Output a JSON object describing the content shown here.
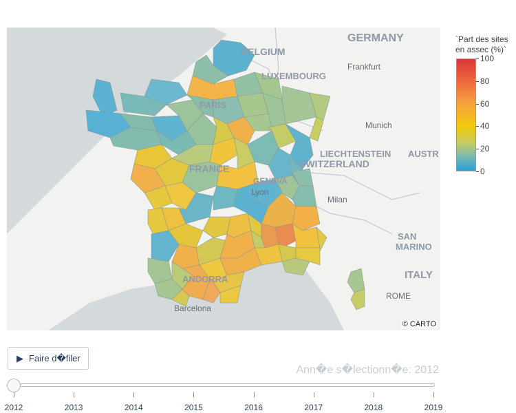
{
  "map": {
    "labels": {
      "germany": "GERMANY",
      "belgium": "BELGIUM",
      "luxembourg": "LUXEMBOURG",
      "frankfurt": "Frankfurt",
      "paris": "PARIS",
      "munich": "Munich",
      "liechtenstein": "LIECHTENSTEIN",
      "austria": "AUSTR",
      "switzerland": "SWITZERLAND",
      "france": "FRANCE",
      "geneva": "GENEVA",
      "lyon": "Lyon",
      "milan": "Milan",
      "san_marino_1": "SAN",
      "san_marino_2": "MARINO",
      "italy": "ITALY",
      "rome": "ROME",
      "andorra": "ANDORRA",
      "barcelona": "Barcelona"
    },
    "attribution": "© CARTO"
  },
  "colorbar": {
    "title_line1": "`Part des sites",
    "title_line2": "en assec (%)`",
    "ticks": [
      "100",
      "80",
      "60",
      "40",
      "20",
      "0"
    ],
    "range": [
      0,
      100
    ],
    "colors": [
      "#2c9fd6",
      "#75b9b6",
      "#c6cd61",
      "#f2c80c",
      "#f5a43e",
      "#ef6a3c",
      "#d9373b"
    ]
  },
  "controls": {
    "play_label": "Faire d�filer",
    "current_value": "Ann�e s�lectionn�e: 2012",
    "years": [
      "2012",
      "2013",
      "2014",
      "2015",
      "2016",
      "2017",
      "2018",
      "2019"
    ],
    "selected_year": "2012"
  }
}
